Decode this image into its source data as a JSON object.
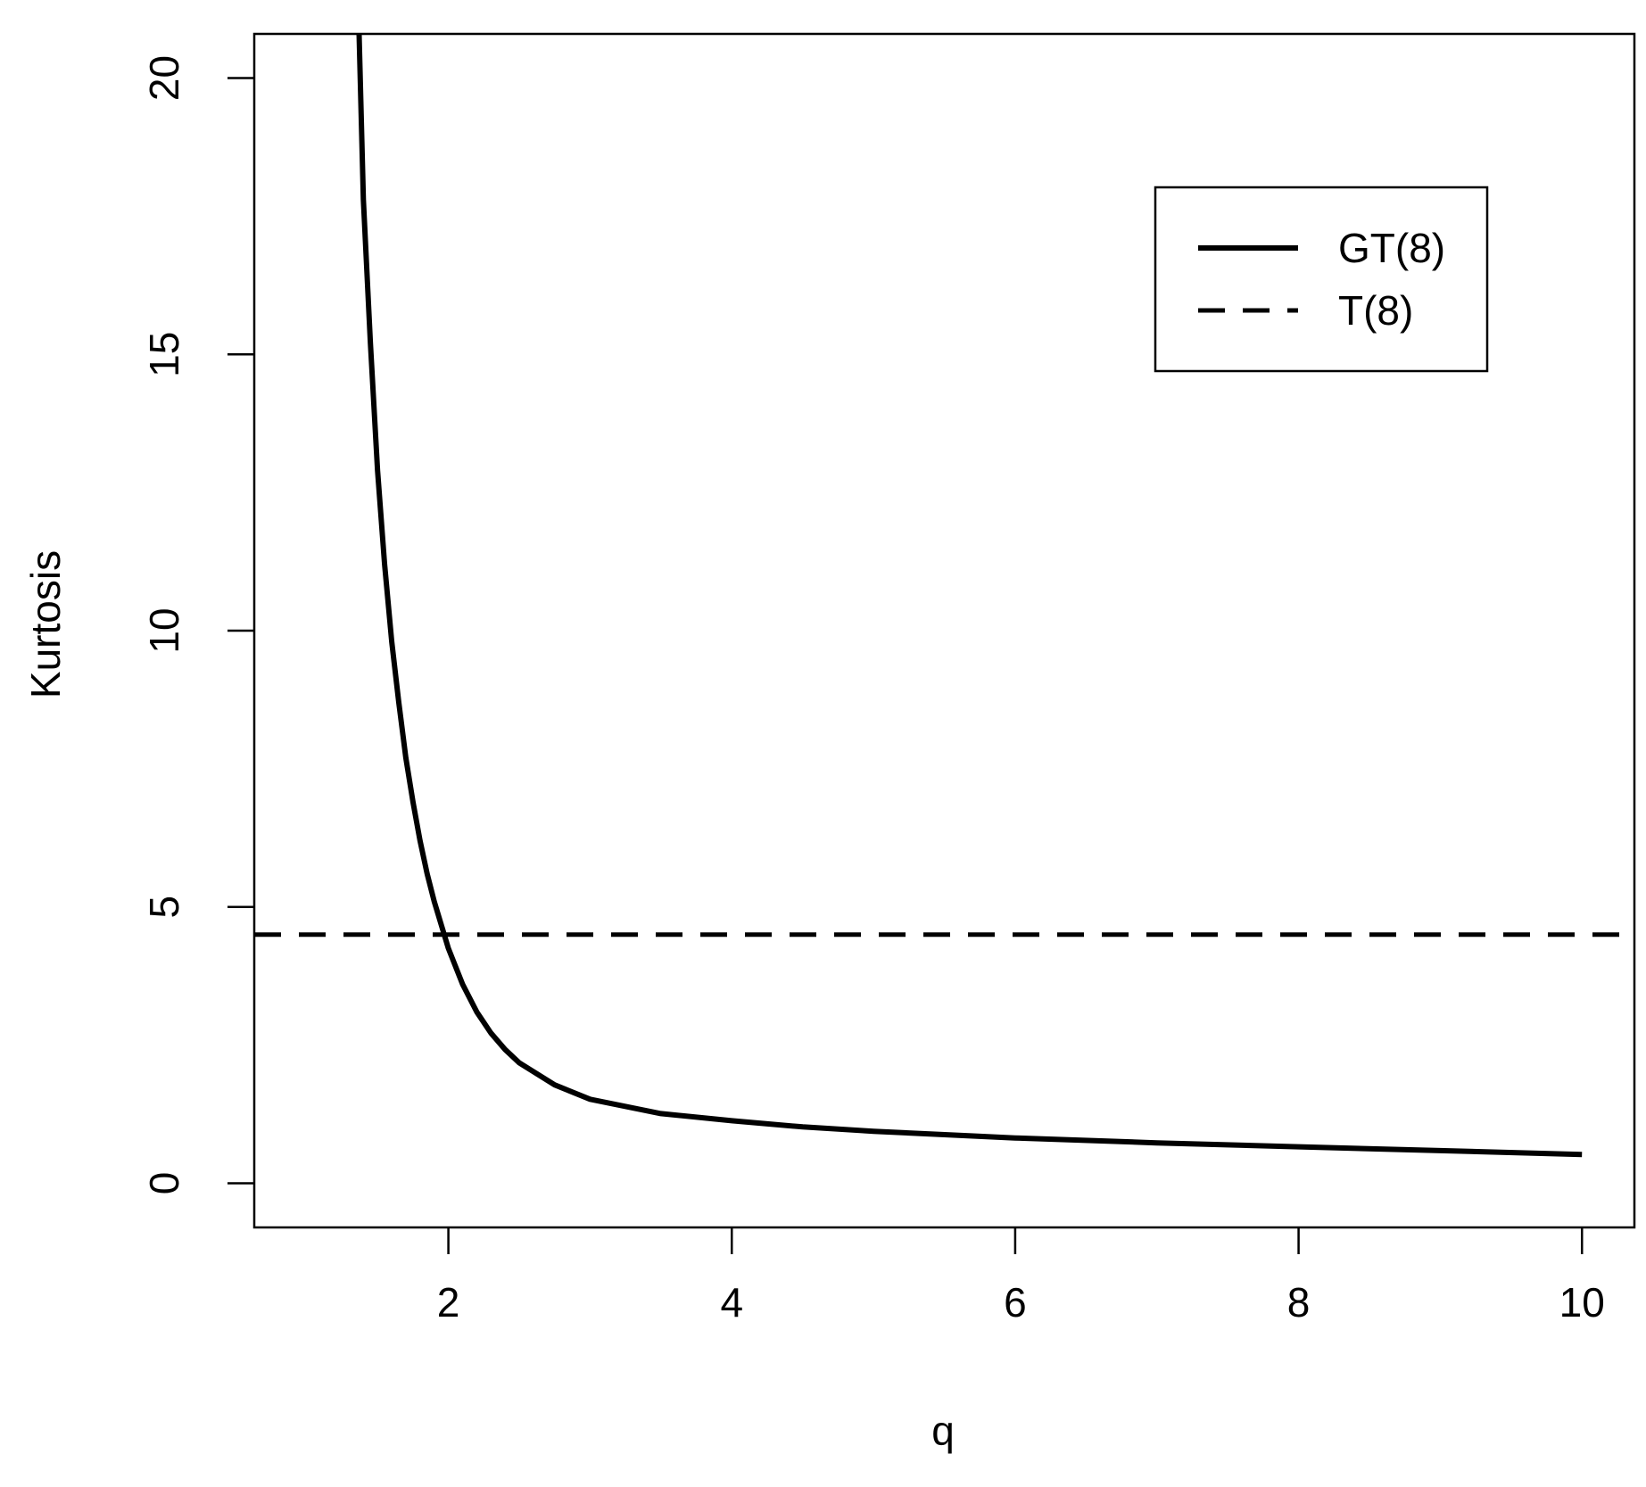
{
  "chart_data": {
    "type": "line",
    "xlabel": "q",
    "ylabel": "Kurtosis",
    "xlim": [
      0.63,
      10.37
    ],
    "ylim": [
      -0.8,
      20.8
    ],
    "x_ticks": [
      2,
      4,
      6,
      8,
      10
    ],
    "y_ticks": [
      0,
      5,
      10,
      15,
      20
    ],
    "x_tick_labels": [
      "2",
      "4",
      "6",
      "8",
      "10"
    ],
    "y_tick_labels": [
      "0",
      "5",
      "10",
      "15",
      "20"
    ],
    "grid": false,
    "legend": {
      "position": "top-right"
    },
    "series": [
      {
        "name": "GT(8)",
        "style": "solid",
        "x": [
          1.37,
          1.4,
          1.45,
          1.5,
          1.55,
          1.6,
          1.65,
          1.7,
          1.75,
          1.8,
          1.85,
          1.9,
          2.0,
          2.1,
          2.2,
          2.3,
          2.4,
          2.5,
          2.75,
          3.0,
          3.5,
          4.0,
          4.5,
          5.0,
          6.0,
          7.0,
          8.0,
          9.0,
          10.0
        ],
        "values": [
          20.8,
          17.8,
          15.2,
          12.9,
          11.2,
          9.8,
          8.7,
          7.7,
          6.9,
          6.2,
          5.6,
          5.1,
          4.25,
          3.6,
          3.1,
          2.72,
          2.42,
          2.18,
          1.78,
          1.52,
          1.26,
          1.13,
          1.02,
          0.94,
          0.82,
          0.73,
          0.66,
          0.59,
          0.52
        ]
      },
      {
        "name": "T(8)",
        "style": "dashed",
        "x": [
          0.63,
          10.37
        ],
        "values": [
          4.5,
          4.5
        ]
      }
    ]
  }
}
